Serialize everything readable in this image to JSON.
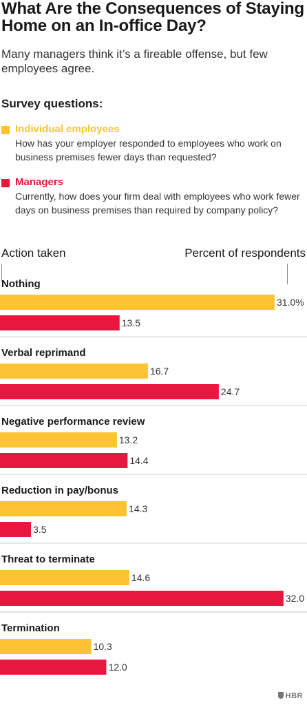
{
  "title": "What Are the Consequences of Staying Home on an In-office Day?",
  "subtitle": "Many managers think it’s a fireable offense, but few employees agree.",
  "survey_heading": "Survey questions:",
  "legend": [
    {
      "name": "Individual employees",
      "color": "#fcc335",
      "question": "How has your employer responded to employees who work on business premises fewer days than requested?"
    },
    {
      "name": "Managers",
      "color": "#e8173f",
      "question": "Currently, how does your firm deal with employees who work fewer days on business premises than required by company policy?"
    }
  ],
  "column_headers": {
    "left": "Action taken",
    "right": "Percent of respondents"
  },
  "logo": "HBR",
  "chart_data": {
    "type": "bar",
    "orientation": "horizontal",
    "categories": [
      "Nothing",
      "Verbal reprimand",
      "Negative performance review",
      "Reduction in pay/bonus",
      "Threat to terminate",
      "Termination"
    ],
    "series": [
      {
        "name": "Individual employees",
        "color": "#fcc335",
        "values": [
          31.0,
          16.7,
          13.2,
          14.3,
          14.6,
          10.3
        ],
        "labels": [
          "31.0%",
          "16.7",
          "13.2",
          "14.3",
          "14.6",
          "10.3"
        ]
      },
      {
        "name": "Managers",
        "color": "#e8173f",
        "values": [
          13.5,
          24.7,
          14.4,
          3.5,
          32.0,
          12.0
        ],
        "labels": [
          "13.5",
          "24.7",
          "14.4",
          "3.5",
          "32.0",
          "12.0"
        ]
      }
    ],
    "xlim": [
      0,
      32
    ],
    "grid": false,
    "legend": "top"
  }
}
